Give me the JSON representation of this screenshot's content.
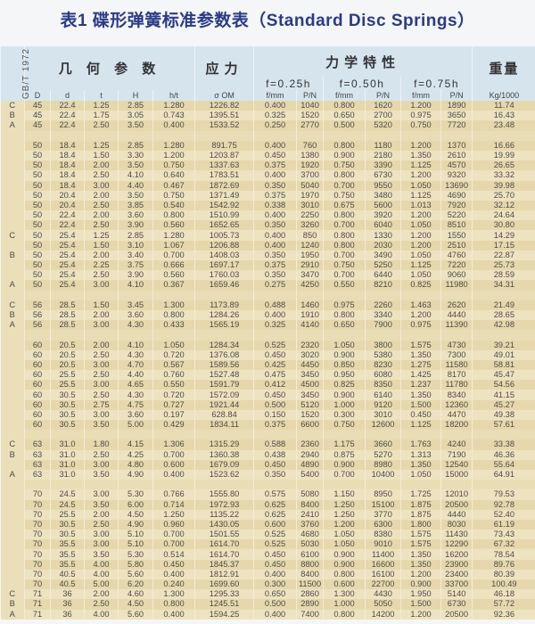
{
  "title": "表1 碟形弹簧标准参数表（Standard Disc Springs）",
  "header": {
    "standard": "GB/T 1972",
    "geometry": "几 何 参 数",
    "stress": "应力",
    "mechanics": "力学特性",
    "weight": "重量",
    "f1": "f=0.25h",
    "f2": "f=0.50h",
    "f3": "f=0.75h",
    "columns": [
      "D",
      "d",
      "t",
      "H",
      "h/t",
      "σ OM",
      "f/mm",
      "P/N",
      "f/mm",
      "P/N",
      "f/mm",
      "P/N",
      "Kg/1000"
    ]
  },
  "colors": {
    "title": "#2b3b86",
    "header_bg": "#d6e4ee",
    "row_bg": "#e6d8ac"
  },
  "rows": [
    [
      "C",
      "45",
      "22.4",
      "1.25",
      "2.85",
      "1.280",
      "1226.82",
      "0.400",
      "1040",
      "0.800",
      "1620",
      "1.200",
      "1890",
      "11.74"
    ],
    [
      "B",
      "45",
      "22.4",
      "1.75",
      "3.05",
      "0.743",
      "1395.51",
      "0.325",
      "1520",
      "0.650",
      "2700",
      "0.975",
      "3650",
      "16.43"
    ],
    [
      "A",
      "45",
      "22.4",
      "2.50",
      "3.50",
      "0.400",
      "1533.52",
      "0.250",
      "2770",
      "0.500",
      "5320",
      "0.750",
      "7720",
      "23.48"
    ],
    null,
    [
      "",
      "50",
      "18.4",
      "1.25",
      "2.85",
      "1.280",
      "891.75",
      "0.400",
      "760",
      "0.800",
      "1180",
      "1.200",
      "1370",
      "16.66"
    ],
    [
      "",
      "50",
      "18.4",
      "1.50",
      "3.30",
      "1.200",
      "1203.87",
      "0.450",
      "1380",
      "0.900",
      "2180",
      "1.350",
      "2610",
      "19.99"
    ],
    [
      "",
      "50",
      "18.4",
      "2.00",
      "3.50",
      "0.750",
      "1337.63",
      "0.375",
      "1920",
      "0.750",
      "3390",
      "1.125",
      "4570",
      "26.65"
    ],
    [
      "",
      "50",
      "18.4",
      "2.50",
      "4.10",
      "0.640",
      "1783.51",
      "0.400",
      "3700",
      "0.800",
      "6730",
      "1.200",
      "9320",
      "33.32"
    ],
    [
      "",
      "50",
      "18.4",
      "3.00",
      "4.40",
      "0.467",
      "1872.69",
      "0.350",
      "5040",
      "0.700",
      "9550",
      "1.050",
      "13690",
      "39.98"
    ],
    [
      "",
      "50",
      "20.4",
      "2.00",
      "3.50",
      "0.750",
      "1371.49",
      "0.375",
      "1970",
      "0.750",
      "3480",
      "1.125",
      "4690",
      "25.70"
    ],
    [
      "",
      "50",
      "20.4",
      "2.50",
      "3.85",
      "0.540",
      "1542.92",
      "0.338",
      "3010",
      "0.675",
      "5600",
      "1.013",
      "7920",
      "32.12"
    ],
    [
      "",
      "50",
      "22.4",
      "2.00",
      "3.60",
      "0.800",
      "1510.99",
      "0.400",
      "2250",
      "0.800",
      "3920",
      "1.200",
      "5220",
      "24.64"
    ],
    [
      "",
      "50",
      "22.4",
      "2.50",
      "3.90",
      "0.560",
      "1652.65",
      "0.350",
      "3260",
      "0.700",
      "6040",
      "1.050",
      "8510",
      "30.80"
    ],
    [
      "C",
      "50",
      "25.4",
      "1.25",
      "2.85",
      "1.280",
      "1005.73",
      "0.400",
      "850",
      "0.800",
      "1330",
      "1.200",
      "1550",
      "14.29"
    ],
    [
      "",
      "50",
      "25.4",
      "1.50",
      "3.10",
      "1.067",
      "1206.88",
      "0.400",
      "1240",
      "0.800",
      "2030",
      "1.200",
      "2510",
      "17.15"
    ],
    [
      "B",
      "50",
      "25.4",
      "2.00",
      "3.40",
      "0.700",
      "1408.03",
      "0.350",
      "1950",
      "0.700",
      "3490",
      "1.050",
      "4760",
      "22.87"
    ],
    [
      "",
      "50",
      "25.4",
      "2.25",
      "3.75",
      "0.666",
      "1697.17",
      "0.375",
      "2910",
      "0.750",
      "5250",
      "1.125",
      "7220",
      "25.73"
    ],
    [
      "",
      "50",
      "25.4",
      "2.50",
      "3.90",
      "0.560",
      "1760.03",
      "0.350",
      "3470",
      "0.700",
      "6440",
      "1.050",
      "9060",
      "28.59"
    ],
    [
      "A",
      "50",
      "25.4",
      "3.00",
      "4.10",
      "0.367",
      "1659.46",
      "0.275",
      "4250",
      "0.550",
      "8210",
      "0.825",
      "11980",
      "34.31"
    ],
    null,
    [
      "C",
      "56",
      "28.5",
      "1.50",
      "3.45",
      "1.300",
      "1173.89",
      "0.488",
      "1460",
      "0.975",
      "2260",
      "1.463",
      "2620",
      "21.49"
    ],
    [
      "B",
      "56",
      "28.5",
      "2.00",
      "3.60",
      "0.800",
      "1284.26",
      "0.400",
      "1910",
      "0.800",
      "3340",
      "1.200",
      "4440",
      "28.65"
    ],
    [
      "A",
      "56",
      "28.5",
      "3.00",
      "4.30",
      "0.433",
      "1565.19",
      "0.325",
      "4140",
      "0.650",
      "7900",
      "0.975",
      "11390",
      "42.98"
    ],
    null,
    [
      "",
      "60",
      "20.5",
      "2.00",
      "4.10",
      "1.050",
      "1284.34",
      "0.525",
      "2320",
      "1.050",
      "3800",
      "1.575",
      "4730",
      "39.21"
    ],
    [
      "",
      "60",
      "20.5",
      "2.50",
      "4.30",
      "0.720",
      "1376.08",
      "0.450",
      "3020",
      "0.900",
      "5380",
      "1.350",
      "7300",
      "49.01"
    ],
    [
      "",
      "60",
      "20.5",
      "3.00",
      "4.70",
      "0.567",
      "1589.56",
      "0.425",
      "4450",
      "0.850",
      "8230",
      "1.275",
      "11580",
      "58.81"
    ],
    [
      "",
      "60",
      "25.5",
      "2.50",
      "4.40",
      "0.760",
      "1527.48",
      "0.475",
      "3450",
      "0.950",
      "6080",
      "1.425",
      "8170",
      "45.47"
    ],
    [
      "",
      "60",
      "25.5",
      "3.00",
      "4.65",
      "0.550",
      "1591.79",
      "0.412",
      "4500",
      "0.825",
      "8350",
      "1.237",
      "11780",
      "54.56"
    ],
    [
      "",
      "60",
      "30.5",
      "2.50",
      "4.30",
      "0.720",
      "1572.09",
      "0.450",
      "3450",
      "0.900",
      "6140",
      "1.350",
      "8340",
      "41.15"
    ],
    [
      "",
      "60",
      "30.5",
      "2.75",
      "4.75",
      "0.727",
      "1921.44",
      "0.500",
      "5120",
      "1.000",
      "9120",
      "1.500",
      "12360",
      "45.27"
    ],
    [
      "",
      "60",
      "30.5",
      "3.00",
      "3.60",
      "0.197",
      "628.84",
      "0.150",
      "1520",
      "0.300",
      "3010",
      "0.450",
      "4470",
      "49.38"
    ],
    [
      "",
      "60",
      "30.5",
      "3.50",
      "5.00",
      "0.429",
      "1834.11",
      "0.375",
      "6600",
      "0.750",
      "12600",
      "1.125",
      "18200",
      "57.61"
    ],
    null,
    [
      "C",
      "63",
      "31.0",
      "1.80",
      "4.15",
      "1.306",
      "1315.29",
      "0.588",
      "2360",
      "1.175",
      "3660",
      "1.763",
      "4240",
      "33.38"
    ],
    [
      "B",
      "63",
      "31.0",
      "2.50",
      "4.25",
      "0.700",
      "1360.38",
      "0.438",
      "2940",
      "0.875",
      "5270",
      "1.313",
      "7190",
      "46.36"
    ],
    [
      "",
      "63",
      "31.0",
      "3.00",
      "4.80",
      "0.600",
      "1679.09",
      "0.450",
      "4890",
      "0.900",
      "8980",
      "1.350",
      "12540",
      "55.64"
    ],
    [
      "A",
      "63",
      "31.0",
      "3.50",
      "4.90",
      "0.400",
      "1523.62",
      "0.350",
      "5400",
      "0.700",
      "10400",
      "1.050",
      "15000",
      "64.91"
    ],
    null,
    [
      "",
      "70",
      "24.5",
      "3.00",
      "5.30",
      "0.766",
      "1555.80",
      "0.575",
      "5080",
      "1.150",
      "8950",
      "1.725",
      "12010",
      "79.53"
    ],
    [
      "",
      "70",
      "24.5",
      "3.50",
      "6.00",
      "0.714",
      "1972.93",
      "0.625",
      "8400",
      "1.250",
      "15100",
      "1.875",
      "20500",
      "92.78"
    ],
    [
      "",
      "70",
      "25.5",
      "2.00",
      "4.50",
      "1.250",
      "1135.22",
      "0.625",
      "2410",
      "1.250",
      "3770",
      "1.875",
      "4440",
      "52.40"
    ],
    [
      "",
      "70",
      "30.5",
      "2.50",
      "4.90",
      "0.960",
      "1430.05",
      "0.600",
      "3760",
      "1.200",
      "6300",
      "1.800",
      "8030",
      "61.19"
    ],
    [
      "",
      "70",
      "30.5",
      "3.00",
      "5.10",
      "0.700",
      "1501.55",
      "0.525",
      "4680",
      "1.050",
      "8380",
      "1.575",
      "11430",
      "73.43"
    ],
    [
      "",
      "70",
      "35.5",
      "3.00",
      "5.10",
      "0.700",
      "1614.70",
      "0.525",
      "5030",
      "1.050",
      "9010",
      "1.575",
      "12290",
      "67.32"
    ],
    [
      "",
      "70",
      "35.5",
      "3.50",
      "5.30",
      "0.514",
      "1614.70",
      "0.450",
      "6100",
      "0.900",
      "11400",
      "1.350",
      "16200",
      "78.54"
    ],
    [
      "",
      "70",
      "35.5",
      "4.00",
      "5.80",
      "0.450",
      "1845.37",
      "0.450",
      "8800",
      "0.900",
      "16600",
      "1.350",
      "23900",
      "89.76"
    ],
    [
      "",
      "70",
      "40.5",
      "4.00",
      "5.60",
      "0.400",
      "1812.91",
      "0.400",
      "8400",
      "0.800",
      "16100",
      "1.200",
      "23400",
      "80.39"
    ],
    [
      "",
      "70",
      "40.5",
      "5.00",
      "6.20",
      "0.240",
      "1699.60",
      "0.300",
      "11500",
      "0.600",
      "22700",
      "0.900",
      "33700",
      "100.49"
    ],
    [
      "C",
      "71",
      "36",
      "2.00",
      "4.60",
      "1.300",
      "1295.33",
      "0.650",
      "2860",
      "1.300",
      "4430",
      "1.950",
      "5140",
      "46.18"
    ],
    [
      "B",
      "71",
      "36",
      "2.50",
      "4.50",
      "0.800",
      "1245.51",
      "0.500",
      "2890",
      "1.000",
      "5050",
      "1.500",
      "6730",
      "57.72"
    ],
    [
      "A",
      "71",
      "36",
      "4.00",
      "5.60",
      "0.400",
      "1594.25",
      "0.400",
      "7400",
      "0.800",
      "14200",
      "1.200",
      "20500",
      "92.36"
    ]
  ]
}
